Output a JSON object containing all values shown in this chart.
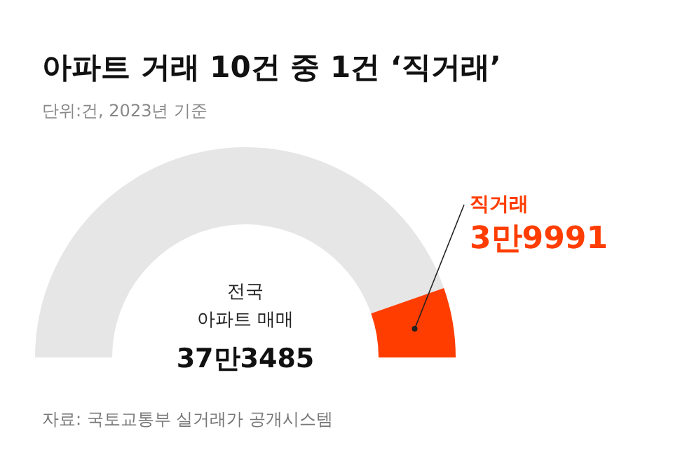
{
  "chart_data": {
    "type": "donut",
    "title": "아파트 거래 10건 중 1건 ‘직거래’",
    "subtitle": "단위:건, 2023년 기준",
    "categories": [
      null,
      "직거래"
    ],
    "values": [
      89.29,
      10.71
    ],
    "colors": [
      "#e6e6e6",
      "#ff3d00"
    ],
    "annotations": [
      "전국 아파트 매매",
      "37만3485",
      "자료: 국토교통부 실거래가 공개시스템",
      "3만9991"
    ]
  }
}
